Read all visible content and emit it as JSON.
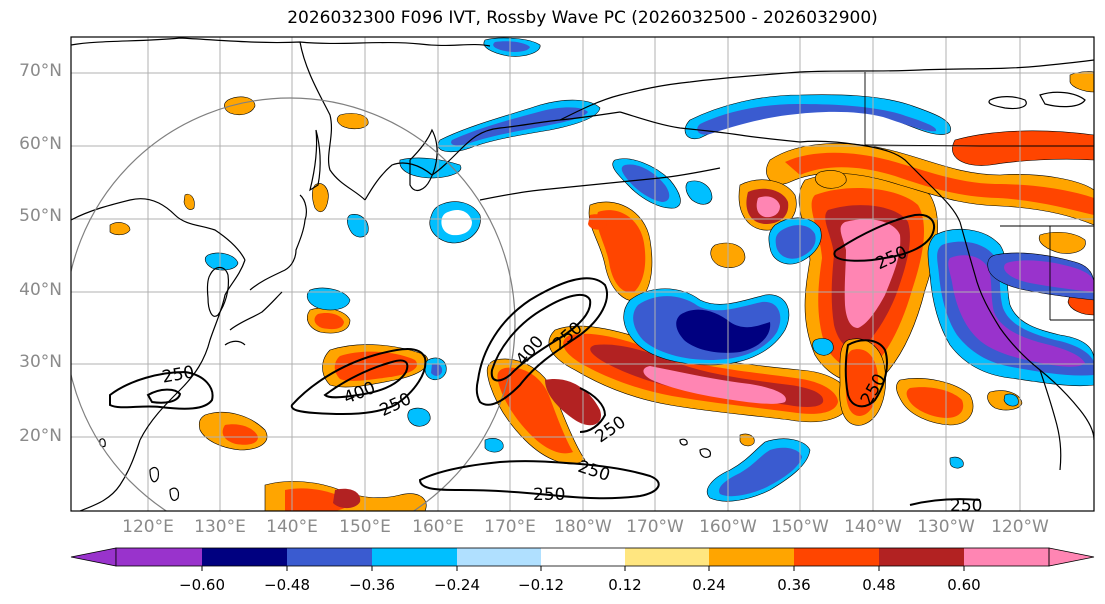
{
  "title": "2026032300 F096 IVT, Rossby Wave PC (2026032500 - 2026032900)",
  "latitude_labels": [
    "70°N",
    "60°N",
    "50°N",
    "40°N",
    "30°N",
    "20°N"
  ],
  "longitude_labels": [
    "120°E",
    "130°E",
    "140°E",
    "150°E",
    "160°E",
    "170°E",
    "180°W",
    "170°W",
    "160°W",
    "150°W",
    "140°W",
    "130°W",
    "120°W"
  ],
  "colorbar": {
    "ticks": [
      "−0.60",
      "−0.48",
      "−0.36",
      "−0.24",
      "−0.12",
      "0.12",
      "0.24",
      "0.36",
      "0.48",
      "0.60"
    ],
    "colors": [
      "#9933cc",
      "#000080",
      "#3a5bd0",
      "#00bfff",
      "#b0e0ff",
      "#ffffff",
      "#ffe680",
      "#ffa500",
      "#ff4500",
      "#b22222",
      "#ff85b3"
    ]
  },
  "contour_labels": [
    "250",
    "400",
    "250",
    "400",
    "250",
    "250",
    "250",
    "250",
    "250",
    "250",
    "250"
  ],
  "colors": {
    "land": "#000000",
    "grid": "#b0b0b0",
    "label": "#8a8a8a"
  }
}
